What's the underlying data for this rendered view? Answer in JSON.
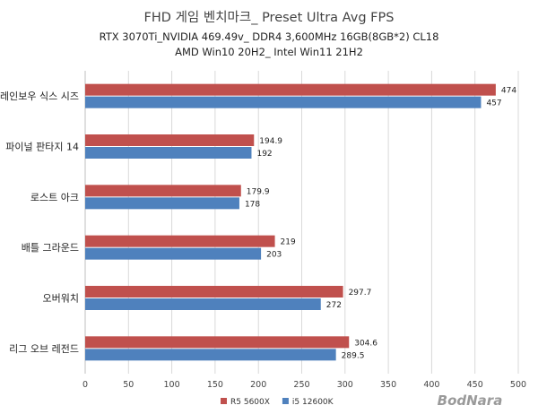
{
  "chart_data": {
    "type": "bar",
    "orientation": "horizontal",
    "title": "FHD 게임 벤치마크_ Preset Ultra Avg FPS",
    "subtitle_lines": [
      "RTX 3070Ti_NVIDIA 469.49v_ DDR4 3,600MHz 16GB(8GB*2) CL18",
      "AMD Win10 20H2_ Intel Win11 21H2"
    ],
    "categories": [
      "레인보우 식스 시즈",
      "파이널 판타지 14",
      "로스트 아크",
      "배틀 그라운드",
      "오버워치",
      "리그 오브 레전드"
    ],
    "series": [
      {
        "name": "R5 5600X",
        "color": "#c0504d",
        "values": [
          474,
          194.9,
          179.9,
          219,
          297.7,
          304.6
        ],
        "labels": [
          "474",
          "194.9",
          "179.9",
          "219",
          "297.7",
          "304.6"
        ]
      },
      {
        "name": "i5 12600K",
        "color": "#4f81bd",
        "values": [
          457,
          192,
          178,
          203,
          272,
          289.5
        ],
        "labels": [
          "457",
          "192",
          "178",
          "203",
          "272",
          "289.5"
        ]
      }
    ],
    "xlim": [
      0,
      500
    ],
    "xticks": [
      0,
      50,
      100,
      150,
      200,
      250,
      300,
      350,
      400,
      450,
      500
    ],
    "grid": true,
    "legend_position": "bottom-center"
  },
  "watermark": "BodNara"
}
